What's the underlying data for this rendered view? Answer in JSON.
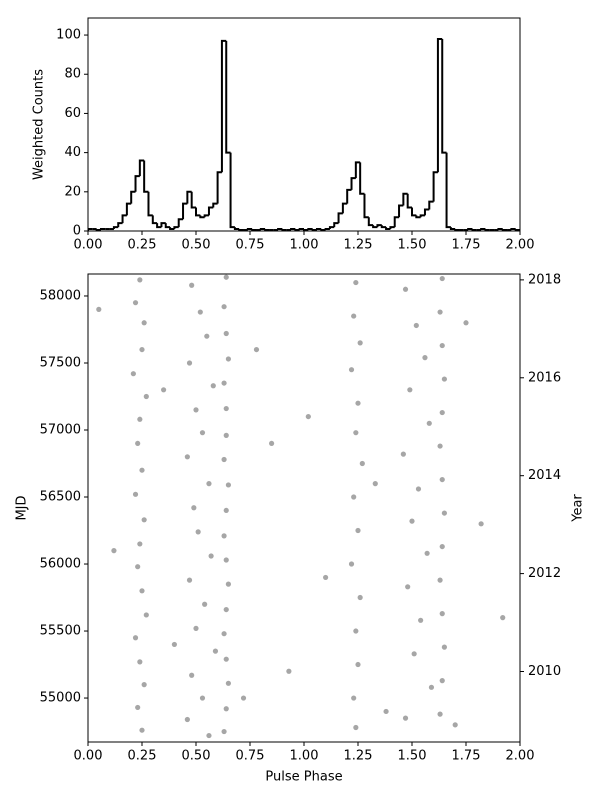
{
  "chart_data": [
    {
      "type": "histogram",
      "ylabel": "Weighted Counts",
      "color": "#000000",
      "bins": [
        0,
        0.02,
        0.04,
        0.06,
        0.08,
        0.1,
        0.12,
        0.14,
        0.16,
        0.18,
        0.2,
        0.22,
        0.24,
        0.26,
        0.28,
        0.3,
        0.32,
        0.34,
        0.36,
        0.38,
        0.4,
        0.42,
        0.44,
        0.46,
        0.48,
        0.5,
        0.52,
        0.54,
        0.56,
        0.58,
        0.6,
        0.62,
        0.64,
        0.66,
        0.68,
        0.7,
        0.72,
        0.74,
        0.76,
        0.78,
        0.8,
        0.82,
        0.84,
        0.86,
        0.88,
        0.9,
        0.92,
        0.94,
        0.96,
        0.98,
        1,
        1.02,
        1.04,
        1.06,
        1.08,
        1.1,
        1.12,
        1.14,
        1.16,
        1.18,
        1.2,
        1.22,
        1.24,
        1.26,
        1.28,
        1.3,
        1.32,
        1.34,
        1.36,
        1.38,
        1.4,
        1.42,
        1.44,
        1.46,
        1.48,
        1.5,
        1.52,
        1.54,
        1.56,
        1.58,
        1.6,
        1.62,
        1.64,
        1.66,
        1.68,
        1.7,
        1.72,
        1.74,
        1.76,
        1.78,
        1.8,
        1.82,
        1.84,
        1.86,
        1.88,
        1.9,
        1.92,
        1.94,
        1.96,
        1.98,
        2
      ],
      "values": [
        1,
        1,
        0.5,
        1,
        1,
        1,
        2,
        4,
        8,
        14,
        20,
        28,
        36,
        20,
        8,
        4,
        2,
        4,
        2,
        1,
        2,
        6,
        14,
        20,
        12,
        8,
        7,
        8,
        12,
        14,
        30,
        97,
        40,
        2,
        1,
        0.5,
        0.5,
        1,
        0.5,
        0.5,
        1,
        0.5,
        0.5,
        0.5,
        1,
        0.5,
        0.5,
        1,
        0.5,
        1,
        0.5,
        1,
        0.5,
        1,
        0.5,
        1,
        2,
        4,
        9,
        14,
        21,
        27,
        35,
        19,
        7,
        3,
        2,
        3,
        2,
        1,
        2,
        7,
        13,
        19,
        12,
        8,
        7,
        8,
        11,
        15,
        30,
        98,
        40,
        2,
        1,
        0.5,
        0.5,
        0.5,
        1,
        0.5,
        0.5,
        1,
        0.5,
        0.5,
        0.5,
        1,
        0.5,
        0.5,
        1,
        0.5
      ],
      "xlim": [
        0,
        2
      ],
      "ylim": [
        0,
        108.7
      ],
      "xticks": [
        {
          "value": 0,
          "label": "0.00"
        },
        {
          "value": 0.25,
          "label": "0.25"
        },
        {
          "value": 0.5,
          "label": "0.50"
        },
        {
          "value": 0.75,
          "label": "0.75"
        },
        {
          "value": 1,
          "label": "1.00"
        },
        {
          "value": 1.25,
          "label": "1.25"
        },
        {
          "value": 1.5,
          "label": "1.50"
        },
        {
          "value": 1.75,
          "label": "1.75"
        },
        {
          "value": 2,
          "label": "2.00"
        }
      ],
      "yticks": [
        0,
        20,
        40,
        60,
        80,
        100
      ]
    },
    {
      "type": "scatter",
      "xlabel": "Pulse Phase",
      "ylabel": "MJD",
      "y2label": "Year",
      "color": "#000000",
      "x": [
        0.24,
        0.22,
        0.26,
        0.25,
        0.21,
        0.27,
        0.24,
        0.23,
        0.25,
        0.22,
        0.26,
        0.24,
        0.23,
        0.25,
        0.27,
        0.22,
        0.24,
        0.26,
        0.23,
        0.25,
        0.48,
        0.52,
        0.55,
        0.47,
        0.58,
        0.5,
        0.53,
        0.46,
        0.56,
        0.49,
        0.51,
        0.57,
        0.47,
        0.54,
        0.5,
        0.59,
        0.48,
        0.53,
        0.46,
        0.56,
        0.64,
        0.63,
        0.64,
        0.65,
        0.63,
        0.64,
        0.64,
        0.63,
        0.65,
        0.64,
        0.63,
        0.64,
        0.65,
        0.64,
        0.63,
        0.64,
        0.65,
        0.64,
        0.63,
        1.24,
        1.23,
        1.26,
        1.22,
        1.25,
        1.24,
        1.27,
        1.23,
        1.25,
        1.22,
        1.26,
        1.24,
        1.25,
        1.23,
        1.24,
        1.47,
        1.52,
        1.56,
        1.49,
        1.58,
        1.46,
        1.53,
        1.5,
        1.57,
        1.48,
        1.54,
        1.51,
        1.59,
        1.47,
        1.64,
        1.63,
        1.64,
        1.65,
        1.64,
        1.63,
        1.64,
        1.65,
        1.64,
        1.63,
        1.64,
        1.65,
        1.64,
        1.63,
        0.05,
        0.12,
        0.35,
        0.4,
        0.78,
        0.85,
        0.93,
        1.02,
        1.1,
        1.33,
        1.38,
        1.75,
        1.82,
        1.92,
        0.72,
        1.7
      ],
      "values": [
        58120,
        57950,
        57800,
        57600,
        57420,
        57250,
        57080,
        56900,
        56700,
        56520,
        56330,
        56150,
        55980,
        55800,
        55620,
        55450,
        55270,
        55100,
        54930,
        54760,
        58080,
        57880,
        57700,
        57500,
        57330,
        57150,
        56980,
        56800,
        56600,
        56420,
        56240,
        56060,
        55880,
        55700,
        55520,
        55350,
        55170,
        55000,
        54840,
        54720,
        58140,
        57920,
        57720,
        57530,
        57350,
        57160,
        56960,
        56780,
        56590,
        56400,
        56210,
        56030,
        55850,
        55660,
        55480,
        55290,
        55110,
        54920,
        54750,
        58100,
        57850,
        57650,
        57450,
        57200,
        56980,
        56750,
        56500,
        56250,
        56000,
        55750,
        55500,
        55250,
        55000,
        54780,
        58050,
        57780,
        57540,
        57300,
        57050,
        56820,
        56560,
        56320,
        56080,
        55830,
        55580,
        55330,
        55080,
        54850,
        58130,
        57880,
        57630,
        57380,
        57130,
        56880,
        56630,
        56380,
        56130,
        55880,
        55630,
        55380,
        55130,
        54880,
        57900,
        56100,
        57300,
        55400,
        57600,
        56900,
        55200,
        57100,
        55900,
        56600,
        54900,
        57800,
        56300,
        55600,
        55000,
        54800
      ],
      "xlim": [
        0,
        2
      ],
      "ylim": [
        54672,
        58164
      ],
      "y2lim": [
        2008.56,
        2018.12
      ],
      "xticks": [
        {
          "value": 0,
          "label": "0.00"
        },
        {
          "value": 0.25,
          "label": "0.25"
        },
        {
          "value": 0.5,
          "label": "0.50"
        },
        {
          "value": 0.75,
          "label": "0.75"
        },
        {
          "value": 1,
          "label": "1.00"
        },
        {
          "value": 1.25,
          "label": "1.25"
        },
        {
          "value": 1.5,
          "label": "1.50"
        },
        {
          "value": 1.75,
          "label": "1.75"
        },
        {
          "value": 2,
          "label": "2.00"
        }
      ],
      "yticks": [
        55000,
        55500,
        56000,
        56500,
        57000,
        57500,
        58000
      ],
      "y2ticks": [
        2010,
        2012,
        2014,
        2016,
        2018
      ]
    }
  ]
}
